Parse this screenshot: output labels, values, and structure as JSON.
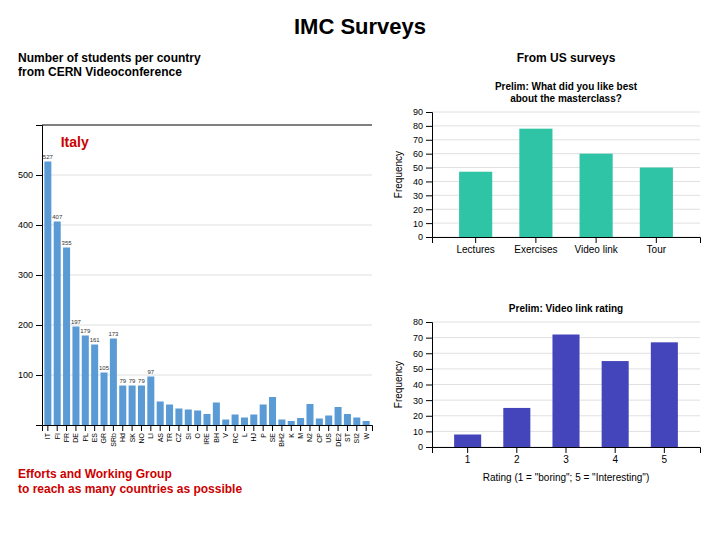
{
  "title": "IMC Surveys",
  "chart_data": [
    {
      "type": "bar",
      "subtitle": "Number of students per country\nfrom CERN Videoconference",
      "categories": [
        "IT",
        "FI",
        "FR",
        "DE",
        "PL",
        "ES",
        "GR",
        "SRb",
        "Hd",
        "SK",
        "NO",
        "LI",
        "AS",
        "TR",
        "CZ",
        "SI",
        "O",
        "IRE",
        "BH",
        "V",
        "RC",
        "L",
        "HJ",
        "P",
        "SE",
        "BH2",
        "K",
        "M",
        "N2",
        "CP",
        "US",
        "DE2",
        "ST",
        "SI2",
        "W"
      ],
      "values": [
        527,
        407,
        355,
        197,
        179,
        161,
        105,
        173,
        79,
        79,
        79,
        97,
        47,
        41,
        33,
        31,
        29,
        22,
        45,
        11,
        21,
        15,
        21,
        41,
        56,
        11,
        8,
        14,
        42,
        13,
        19,
        36,
        22,
        15,
        8
      ],
      "value_labels": [
        "527",
        "407",
        "355",
        "197",
        "179",
        "161",
        "105",
        "173",
        "79",
        "79",
        "79",
        "97",
        null,
        null,
        null,
        null,
        null,
        null,
        null,
        null,
        null,
        null,
        null,
        null,
        null,
        null,
        null,
        null,
        null,
        null,
        null,
        null,
        null,
        null,
        null
      ],
      "data_labels": true,
      "color": "#5b9bd5",
      "ylim": [
        0,
        600
      ],
      "yticks": [
        100,
        200,
        300,
        400,
        500
      ],
      "grid": true,
      "annotations": [
        {
          "text": "Italy",
          "color": "#cc0000"
        },
        {
          "text": "Efforts and Working Group\nto reach as many countries as possible",
          "color": "#cc0000"
        }
      ]
    },
    {
      "type": "bar",
      "subtitle": "From US surveys",
      "title": "Prelim: What did you like best\nabout the masterclass?",
      "categories": [
        "Lectures",
        "Exercises",
        "Video link",
        "Tour"
      ],
      "values": [
        47,
        78,
        60,
        50
      ],
      "color": "#2ec4a5",
      "ylabel": "Frequency",
      "ylim": [
        0,
        90
      ],
      "yticks": [
        0,
        10,
        20,
        30,
        40,
        50,
        60,
        70,
        80,
        90
      ],
      "grid": true
    },
    {
      "type": "bar",
      "title": "Prelim: Video link rating",
      "categories": [
        "1",
        "2",
        "3",
        "4",
        "5"
      ],
      "values": [
        8,
        25,
        72,
        55,
        67
      ],
      "color": "#4444bb",
      "xlabel": "Rating (1 = \"boring\"; 5 = \"Interesting\")",
      "ylabel": "Frequency",
      "ylim": [
        0,
        80
      ],
      "yticks": [
        0,
        10,
        20,
        30,
        40,
        50,
        60,
        70,
        80
      ],
      "grid": true
    }
  ]
}
